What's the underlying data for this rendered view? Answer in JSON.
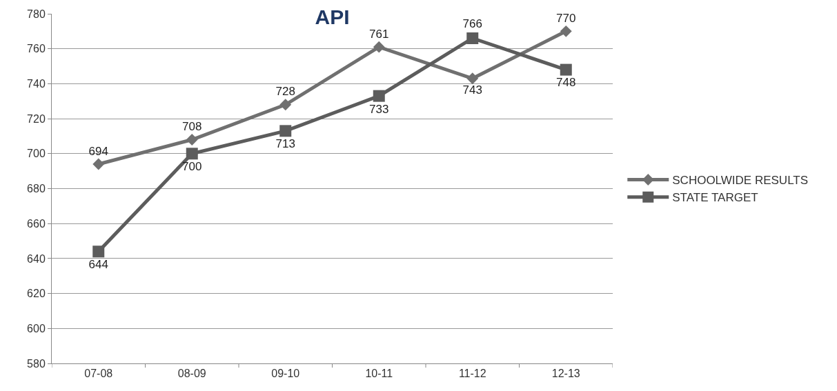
{
  "chart_data": {
    "type": "line",
    "title": "API",
    "categories": [
      "07-08",
      "08-09",
      "09-10",
      "10-11",
      "11-12",
      "12-13"
    ],
    "series": [
      {
        "name": "SCHOOLWIDE RESULTS",
        "color": "#707070",
        "marker": "diamond",
        "values": [
          694,
          708,
          728,
          761,
          743,
          770
        ]
      },
      {
        "name": "STATE TARGET",
        "color": "#5c5c5c",
        "marker": "square",
        "values": [
          644,
          700,
          713,
          733,
          766,
          748
        ]
      }
    ],
    "ylim": [
      580,
      780
    ],
    "yticks": [
      580,
      600,
      620,
      640,
      660,
      680,
      700,
      720,
      740,
      760,
      780
    ],
    "grid": "y",
    "legend": "right",
    "data_labels": true,
    "line_style": "solid"
  }
}
